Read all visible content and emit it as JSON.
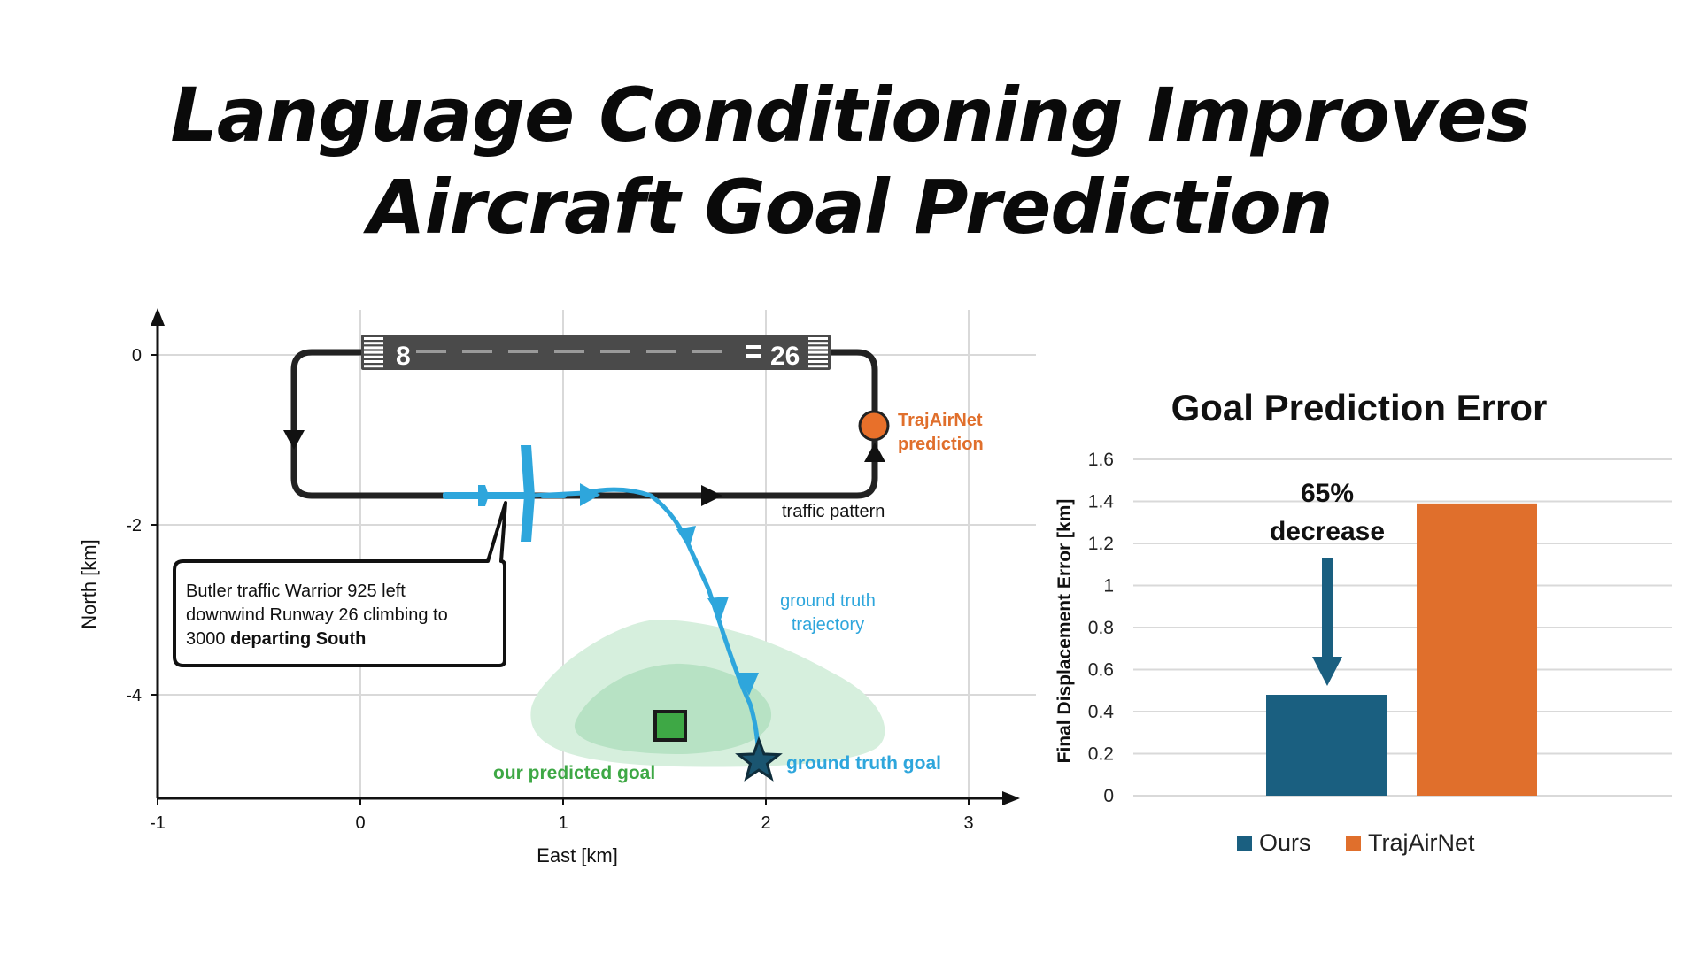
{
  "title": {
    "line1": "Language Conditioning Improves",
    "line2": "Aircraft Goal Prediction"
  },
  "colors": {
    "ours": "#1a5f80",
    "trajairnet": "#e06f2c",
    "trajectory": "#2ea6dc",
    "predicted_goal": "#3ea845",
    "pattern": "#222222",
    "grid": "#d9d9d9"
  },
  "chart_data": [
    {
      "type": "scatter",
      "xlabel": "East [km]",
      "ylabel": "North [km]",
      "xlim": [
        -1,
        3
      ],
      "ylim": [
        -5.2,
        0.5
      ],
      "xticks": [
        -1,
        0,
        1,
        2,
        3
      ],
      "yticks": [
        0,
        -2,
        -4
      ],
      "grid": true,
      "runway": {
        "left_label": "8",
        "right_label": "26",
        "x_range": [
          0,
          2.3
        ],
        "y": 0
      },
      "traffic_pattern": {
        "label": "traffic pattern",
        "points": [
          [
            -0.32,
            0
          ],
          [
            -0.32,
            -1.65
          ],
          [
            2.55,
            -1.65
          ],
          [
            2.55,
            0
          ]
        ]
      },
      "ground_truth_trajectory": {
        "label_line1": "ground truth",
        "label_line2": "trajectory",
        "points": [
          [
            0.4,
            -1.65
          ],
          [
            0.9,
            -1.65
          ],
          [
            1.2,
            -1.6
          ],
          [
            1.45,
            -1.65
          ],
          [
            1.65,
            -2.0
          ],
          [
            1.75,
            -2.5
          ],
          [
            1.85,
            -3.0
          ],
          [
            1.95,
            -3.6
          ],
          [
            2.0,
            -4.1
          ],
          [
            2.0,
            -4.65
          ]
        ]
      },
      "ground_truth_goal": {
        "label": "ground truth goal",
        "x": 1.95,
        "y": -4.75
      },
      "our_predicted_goal": {
        "label": "our predicted goal",
        "x": 1.53,
        "y": -4.4
      },
      "trajairnet_prediction": {
        "label_line1": "TrajAirNet",
        "label_line2": "prediction",
        "x": 2.55,
        "y": -0.82
      },
      "aircraft": {
        "x": 0.82,
        "y": -1.65
      },
      "callout": {
        "line1": "Butler traffic Warrior 925 left",
        "line2": "downwind Runway 26 climbing to",
        "line3_plain": "3000 ",
        "line3_bold": "departing South"
      }
    },
    {
      "type": "bar",
      "title": "Goal Prediction Error",
      "ylabel": "Final Displacement Error [km]",
      "ylim": [
        0,
        1.6
      ],
      "yticks": [
        0,
        0.2,
        0.4,
        0.6,
        0.8,
        1,
        1.2,
        1.4,
        1.6
      ],
      "grid": true,
      "legend_position": "bottom",
      "series": [
        {
          "name": "Ours",
          "values": [
            0.48
          ]
        },
        {
          "name": "TrajAirNet",
          "values": [
            1.39
          ]
        }
      ],
      "annotation": {
        "line1": "65%",
        "line2": "decrease"
      }
    }
  ]
}
